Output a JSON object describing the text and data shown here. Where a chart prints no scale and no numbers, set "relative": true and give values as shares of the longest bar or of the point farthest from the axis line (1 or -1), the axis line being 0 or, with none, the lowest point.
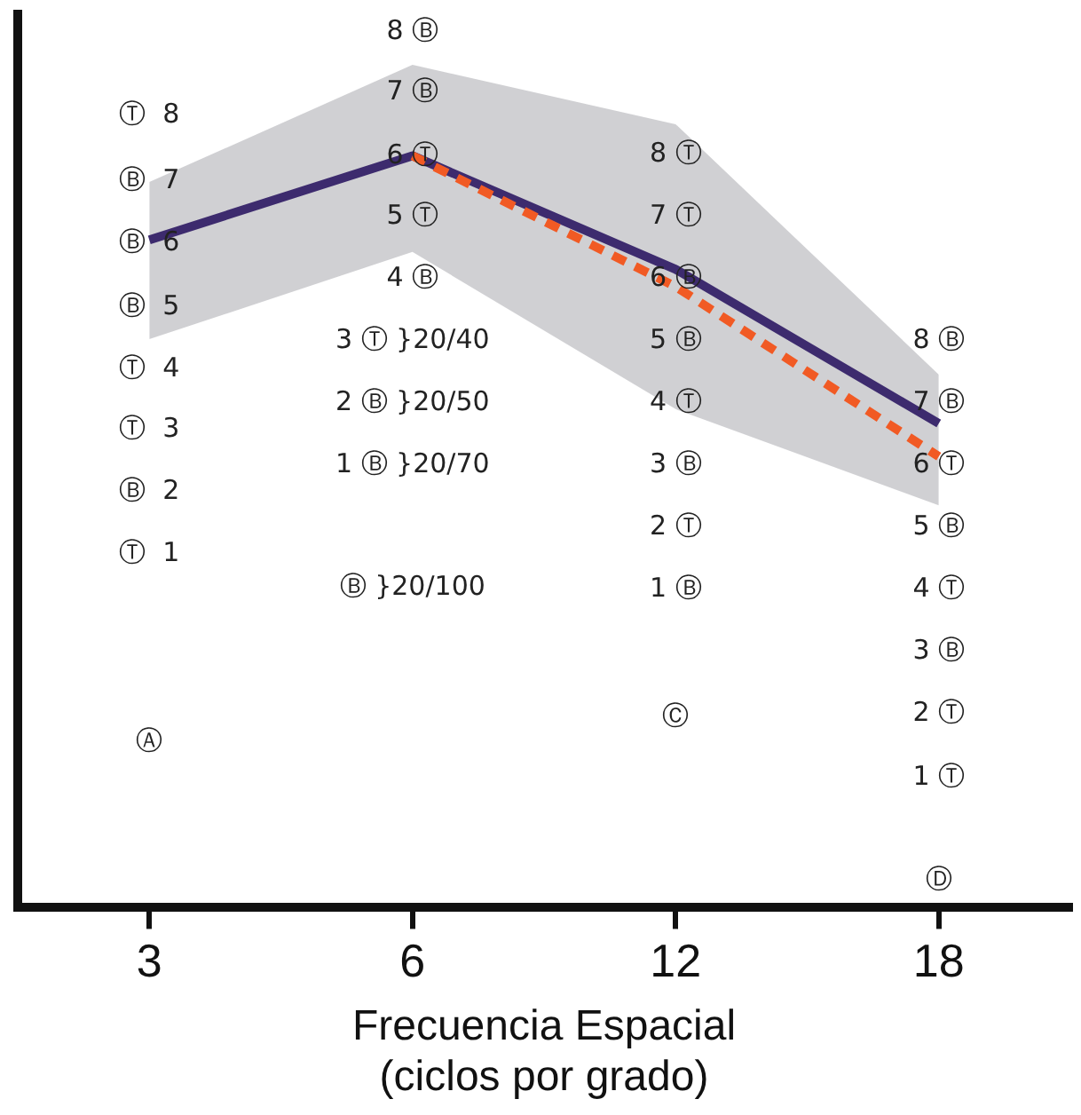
{
  "chart_data": {
    "type": "line",
    "categories": [
      "3",
      "6",
      "12",
      "18"
    ],
    "relative": true,
    "xlabel": "Frecuencia Espacial\n(ciclos por grado)",
    "grid": false,
    "legend": false,
    "marker": "none",
    "series": [
      {
        "color": "#3d2b6e",
        "line_style": "solid",
        "values": [
          0.888,
          1,
          0.849,
          0.644
        ],
        "lower": [
          0.756,
          0.872,
          0.663,
          0.535
        ],
        "upper": [
          0.965,
          1.121,
          1.042,
          0.709
        ]
      },
      {
        "color": "#f15a24",
        "line_style": "dashed",
        "values": [
          null,
          1,
          0.826,
          0.6
        ]
      }
    ],
    "annotations": [
      "Ⓣ  8",
      "Ⓑ  7",
      "Ⓑ  6",
      "Ⓑ  5",
      "Ⓣ  4",
      "Ⓣ  3",
      "Ⓑ  2",
      "Ⓣ  1",
      "Ⓐ",
      "8 Ⓑ",
      "7 Ⓑ",
      "6 Ⓣ",
      "5 Ⓣ",
      "4 Ⓑ",
      "3 Ⓣ }20/40",
      "2 Ⓑ }20/50",
      "1 Ⓑ }20/70",
      "Ⓑ }20/100",
      "8 Ⓣ",
      "7 Ⓣ",
      "6 Ⓑ",
      "5 Ⓑ",
      "4 Ⓣ",
      "3 Ⓑ",
      "2 Ⓣ",
      "1 Ⓑ",
      "Ⓒ",
      "8 Ⓑ",
      "7 Ⓑ",
      "6 Ⓣ",
      "5 Ⓑ",
      "4 Ⓣ",
      "3 Ⓑ",
      "2 Ⓣ",
      "1 Ⓣ",
      "Ⓓ"
    ]
  }
}
